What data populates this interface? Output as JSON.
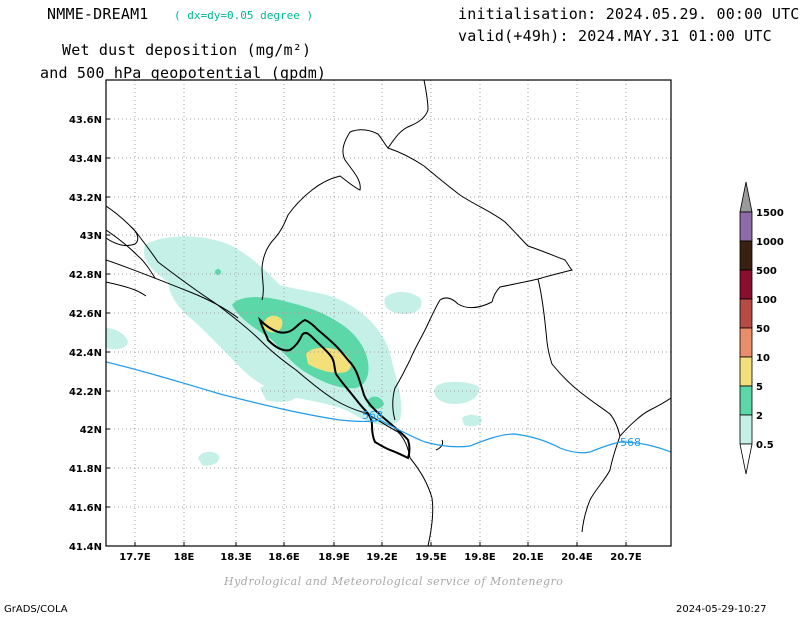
{
  "header": {
    "model_name": "NMME-DREAM1",
    "resolution": "( dx=dy=0.05 degree )",
    "title_line1": "Wet dust deposition (mg/m²)",
    "title_line2": "and 500 hPa geopotential (gpdm)",
    "init_line": "initialisation: 2024.05.29. 00:00 UTC",
    "valid_line": "valid(+49h): 2024.MAY.31 01:00 UTC"
  },
  "map": {
    "lat_labels": [
      "43.6N",
      "43.4N",
      "43.2N",
      "43N",
      "42.8N",
      "42.6N",
      "42.4N",
      "42.2N",
      "42N",
      "41.8N",
      "41.6N",
      "41.4N"
    ],
    "lon_labels": [
      "17.7E",
      "18E",
      "18.3E",
      "18.6E",
      "18.9E",
      "19.2E",
      "19.5E",
      "19.8E",
      "20.1E",
      "20.4E",
      "20.7E"
    ],
    "contour_labels": [
      "568",
      "568"
    ],
    "colors": {
      "geopotential_line": "#1f9bea",
      "border_line": "#000000",
      "grid_line": "#a0a0a0"
    }
  },
  "colorbar": {
    "levels": [
      "1500",
      "1000",
      "500",
      "100",
      "50",
      "10",
      "5",
      "2",
      "0.5"
    ],
    "colors": [
      "#9a9a9a",
      "#8e6ca8",
      "#3a2010",
      "#8a0e2e",
      "#b84a44",
      "#ea8e6a",
      "#f4e07a",
      "#5cd8a8",
      "#c4f0e8",
      "#ffffff"
    ]
  },
  "footer": {
    "credit": "Hydrological and Meteorological service of Montenegro",
    "left": "GrADS/COLA",
    "right": "2024-05-29-10:27"
  }
}
